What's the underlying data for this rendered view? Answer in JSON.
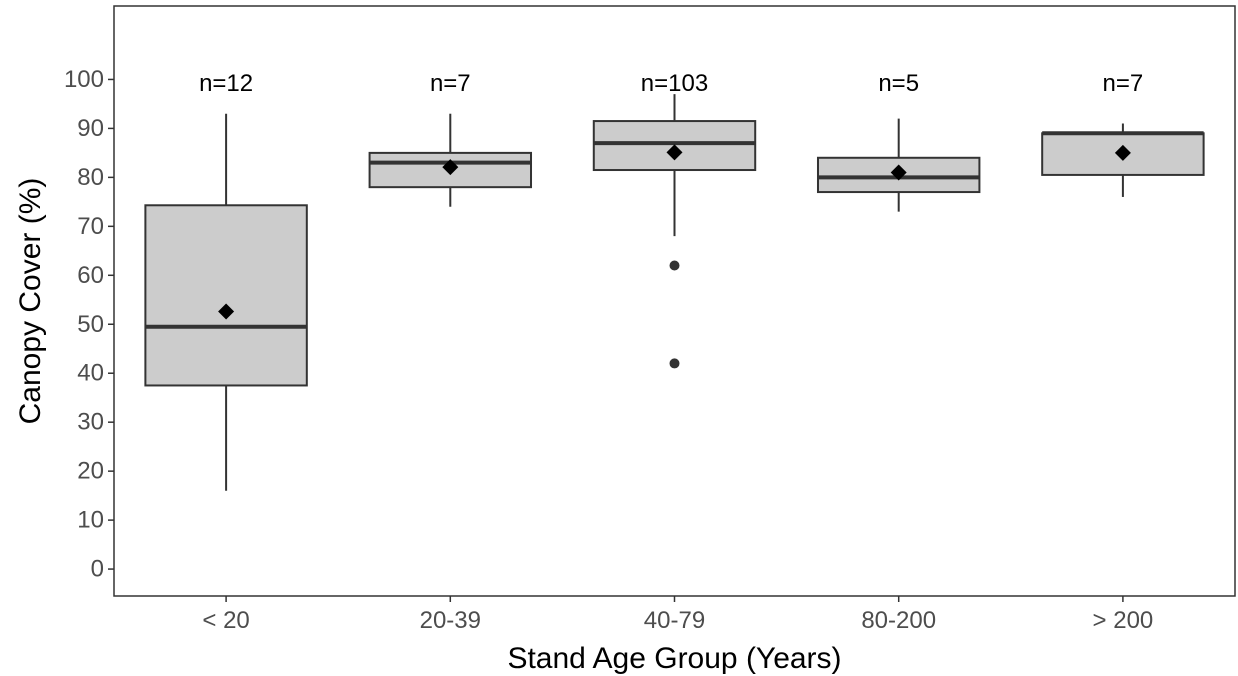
{
  "chart_data": {
    "type": "boxplot",
    "xlabel": "Stand Age Group (Years)",
    "ylabel": "Canopy Cover (%)",
    "ylim": [
      -5.5,
      115
    ],
    "yticks": [
      0,
      10,
      20,
      30,
      40,
      50,
      60,
      70,
      80,
      90,
      100
    ],
    "grid": false,
    "legend": "none",
    "categories": [
      "< 20",
      "20-39",
      "40-79",
      "80-200",
      "> 200"
    ],
    "groups": [
      {
        "category": "< 20",
        "n_label": "n=12",
        "whisker_low": 16,
        "q1": 37.5,
        "median": 49.5,
        "q3": 74.3,
        "whisker_high": 93,
        "mean": 52.6,
        "outliers": []
      },
      {
        "category": "20-39",
        "n_label": "n=7",
        "whisker_low": 74,
        "q1": 78,
        "median": 83,
        "q3": 85,
        "whisker_high": 93,
        "mean": 82.1,
        "outliers": []
      },
      {
        "category": "40-79",
        "n_label": "n=103",
        "whisker_low": 68,
        "q1": 81.5,
        "median": 87,
        "q3": 91.5,
        "whisker_high": 97,
        "mean": 85.1,
        "outliers": [
          62,
          42
        ]
      },
      {
        "category": "80-200",
        "n_label": "n=5",
        "whisker_low": 73,
        "q1": 77,
        "median": 80,
        "q3": 84,
        "whisker_high": 92,
        "mean": 81,
        "outliers": []
      },
      {
        "category": "> 200",
        "n_label": "n=7",
        "whisker_low": 76,
        "q1": 80.5,
        "median": 89,
        "q3": 89,
        "whisker_high": 91,
        "mean": 85,
        "outliers": []
      }
    ],
    "colors": {
      "box_fill": "#cccccc",
      "box_stroke": "#333333",
      "mean_marker": "#000000",
      "outlier": "#333333",
      "panel_border": "#333333",
      "tick_text": "#4d4d4d",
      "title_text": "#000000"
    }
  }
}
